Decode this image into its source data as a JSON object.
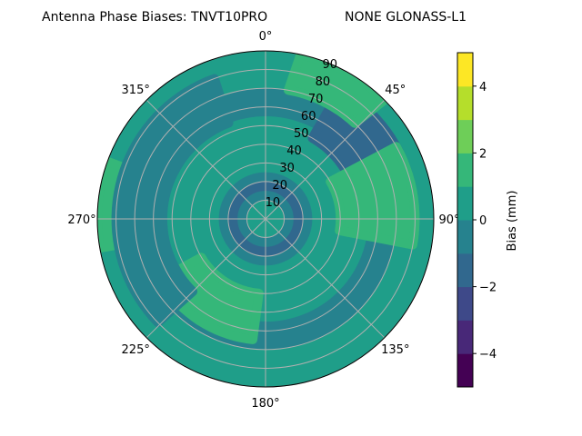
{
  "chart_data": {
    "type": "polar-contour",
    "title": "Antenna Phase Biases: TNVT10PRO",
    "subtitle": "NONE GLONASS-L1",
    "azimuth_ticks": [
      "0°",
      "45°",
      "90°",
      "135°",
      "180°",
      "225°",
      "270°",
      "315°"
    ],
    "radial_ticks": [
      "10",
      "20",
      "30",
      "40",
      "50",
      "60",
      "70",
      "80",
      "90"
    ],
    "radial_range": [
      0,
      90
    ],
    "grid": true,
    "colorbar": {
      "label": "Bias (mm)",
      "ticks": [
        "4",
        "2",
        "0",
        "−2",
        "−4"
      ],
      "range": [
        -5,
        5
      ],
      "levels": [
        -5,
        -4,
        -3,
        -2,
        -1,
        0,
        1,
        2,
        3,
        4,
        5
      ],
      "colors": [
        "#440154",
        "#482878",
        "#3e4989",
        "#31688e",
        "#26828e",
        "#1f9e89",
        "#35b779",
        "#6ece58",
        "#b5de2b",
        "#fde725"
      ]
    },
    "regions": [
      {
        "level": 0.5,
        "note": "background field (teal-green)"
      },
      {
        "level": -0.5,
        "ring_elevation": [
          10,
          25
        ]
      },
      {
        "level": -1.5,
        "ring_elevation": [
          15,
          20
        ]
      },
      {
        "level": -0.5,
        "ring_elevation": [
          55,
          70
        ]
      },
      {
        "level": -1.5,
        "azimuth": [
          30,
          75
        ],
        "elevation": [
          50,
          80
        ]
      },
      {
        "level": 1.5,
        "azimuth": [
          60,
          100
        ],
        "elevation": [
          40,
          80
        ]
      },
      {
        "level": 1.5,
        "azimuth": [
          10,
          45
        ],
        "elevation": [
          70,
          90
        ]
      },
      {
        "level": 1.5,
        "azimuth": [
          260,
          290
        ],
        "elevation": [
          80,
          90
        ]
      },
      {
        "level": 1.5,
        "azimuth": [
          185,
          240
        ],
        "elevation": [
          40,
          65
        ]
      },
      {
        "level": -0.5,
        "azimuth": [
          225,
          340
        ],
        "elevation": [
          55,
          80
        ]
      }
    ]
  }
}
